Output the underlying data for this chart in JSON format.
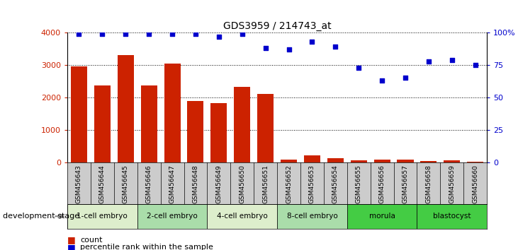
{
  "title": "GDS3959 / 214743_at",
  "samples": [
    "GSM456643",
    "GSM456644",
    "GSM456645",
    "GSM456646",
    "GSM456647",
    "GSM456648",
    "GSM456649",
    "GSM456650",
    "GSM456651",
    "GSM456652",
    "GSM456653",
    "GSM456654",
    "GSM456655",
    "GSM456656",
    "GSM456657",
    "GSM456658",
    "GSM456659",
    "GSM456660"
  ],
  "counts": [
    2950,
    2380,
    3300,
    2360,
    3050,
    1900,
    1830,
    2320,
    2120,
    90,
    210,
    130,
    70,
    90,
    85,
    50,
    70,
    30
  ],
  "percentile": [
    99,
    99,
    99,
    99,
    99,
    99,
    97,
    99,
    88,
    87,
    93,
    89,
    73,
    63,
    65,
    78,
    79,
    75
  ],
  "stages": [
    {
      "label": "1-cell embryo",
      "start": 0,
      "end": 3
    },
    {
      "label": "2-cell embryo",
      "start": 3,
      "end": 6
    },
    {
      "label": "4-cell embryo",
      "start": 6,
      "end": 9
    },
    {
      "label": "8-cell embryo",
      "start": 9,
      "end": 12
    },
    {
      "label": "morula",
      "start": 12,
      "end": 15
    },
    {
      "label": "blastocyst",
      "start": 15,
      "end": 18
    }
  ],
  "stage_colors": [
    "#ddeecc",
    "#aaddaa",
    "#ddeecc",
    "#aaddaa",
    "#44cc44",
    "#44cc44"
  ],
  "bar_color": "#cc2200",
  "dot_color": "#0000cc",
  "ylim_left": [
    0,
    4000
  ],
  "ylim_right": [
    0,
    100
  ],
  "yticks_left": [
    0,
    1000,
    2000,
    3000,
    4000
  ],
  "yticks_right": [
    0,
    25,
    50,
    75,
    100
  ],
  "yticklabels_right": [
    "0",
    "25",
    "50",
    "75",
    "100%"
  ],
  "sample_bg_color": "#cccccc",
  "dev_stage_label": "development stage"
}
